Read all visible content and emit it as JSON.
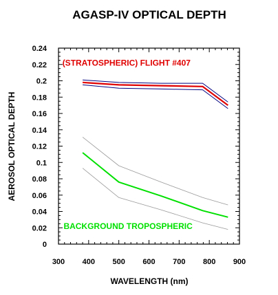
{
  "chart_data": {
    "type": "line",
    "title": "AGASP-IV  OPTICAL DEPTH",
    "xlabel": "WAVELENGTH  (nm)",
    "ylabel": "AEROSOL OPTICAL DEPTH",
    "xlim": [
      300,
      900
    ],
    "ylim": [
      0,
      0.24
    ],
    "xticks": [
      300,
      400,
      500,
      600,
      700,
      800,
      900
    ],
    "yticks": [
      0,
      0.02,
      0.04,
      0.06,
      0.08,
      0.1,
      0.12,
      0.14,
      0.16,
      0.18,
      0.2,
      0.22,
      0.24
    ],
    "x_tick_labels": [
      "300",
      "400",
      "500",
      "600",
      "700",
      "800",
      "900"
    ],
    "y_tick_labels": [
      "0",
      "0.02",
      "0.04",
      "0.06",
      "0.08",
      "0.1",
      "0.12",
      "0.14",
      "0.16",
      "0.18",
      "0.2",
      "0.22",
      "0.24"
    ],
    "grid": false,
    "annotations": [
      {
        "text": "(STRATOSPHERIC)   FLIGHT #407",
        "color": "#e00000",
        "x": 313,
        "y": 0.2185
      },
      {
        "text": "BACKGROUND TROPOSPHERIC",
        "color": "#00e000",
        "x": 317,
        "y": 0.0185
      }
    ],
    "series": [
      {
        "color": "#e00000",
        "width": 2.2,
        "x": [
          380,
          500,
          640,
          778,
          862
        ],
        "y": [
          0.198,
          0.195,
          0.194,
          0.193,
          0.17
        ]
      },
      {
        "color": "#000080",
        "width": 1,
        "x": [
          380,
          500,
          640,
          778,
          862
        ],
        "y": [
          0.201,
          0.198,
          0.197,
          0.197,
          0.174
        ]
      },
      {
        "color": "#000080",
        "width": 1,
        "x": [
          380,
          500,
          640,
          778,
          862
        ],
        "y": [
          0.195,
          0.191,
          0.19,
          0.189,
          0.166
        ]
      },
      {
        "color": "#00e000",
        "width": 2,
        "x": [
          380,
          500,
          640,
          778,
          862
        ],
        "y": [
          0.112,
          0.076,
          0.059,
          0.041,
          0.033
        ]
      },
      {
        "color": "#999999",
        "width": 0.8,
        "x": [
          380,
          500,
          640,
          778,
          862
        ],
        "y": [
          0.131,
          0.096,
          0.076,
          0.057,
          0.048
        ]
      },
      {
        "color": "#999999",
        "width": 0.8,
        "x": [
          380,
          500,
          640,
          778,
          862
        ],
        "y": [
          0.093,
          0.057,
          0.042,
          0.026,
          0.018
        ]
      }
    ]
  }
}
